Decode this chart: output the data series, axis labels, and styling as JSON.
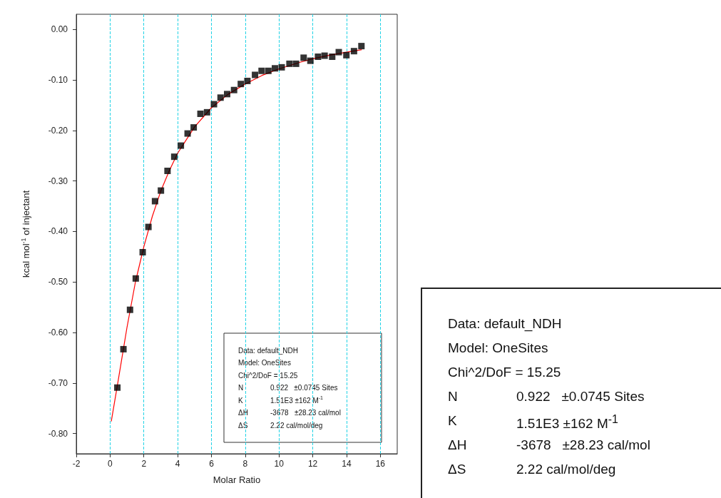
{
  "chart_data": [
    {
      "type": "scatter",
      "xlabel": "Molar Ratio",
      "ylabel": "kcal mol$^{-1}$ of injectant",
      "xlim": [
        -2,
        17
      ],
      "xticks": [
        -2,
        0,
        2,
        4,
        6,
        8,
        10,
        12,
        14,
        16
      ],
      "ylim": [
        -0.84,
        0.03
      ],
      "yticks": [
        {
          "value": 0,
          "label": "0.00"
        },
        {
          "value": -0.1,
          "label": "-0.10"
        },
        {
          "value": -0.2,
          "label": "-0.20"
        },
        {
          "value": -0.3,
          "label": "-0.30"
        },
        {
          "value": -0.4,
          "label": "-0.40"
        },
        {
          "value": -0.5,
          "label": "-0.50"
        },
        {
          "value": -0.6,
          "label": "-0.60"
        },
        {
          "value": -0.7,
          "label": "-0.70"
        },
        {
          "value": -0.8,
          "label": "-0.80"
        }
      ],
      "grid": "x",
      "series": [
        {
          "type": "scatter",
          "color": "#000000",
          "marker": "square",
          "x": [
            0.43,
            0.79,
            1.18,
            1.52,
            1.93,
            2.27,
            2.66,
            3.01,
            3.4,
            3.8,
            4.19,
            4.59,
            4.95,
            5.35,
            5.74,
            6.15,
            6.54,
            6.93,
            7.34,
            7.74,
            8.13,
            8.58,
            8.97,
            9.37,
            9.76,
            10.16,
            10.62,
            11.01,
            11.46,
            11.86,
            12.31,
            12.7,
            13.15,
            13.54,
            13.99,
            14.44,
            14.88
          ],
          "values": [
            -0.709,
            -0.633,
            -0.555,
            -0.493,
            -0.441,
            -0.391,
            -0.34,
            -0.319,
            -0.28,
            -0.252,
            -0.23,
            -0.206,
            -0.194,
            -0.167,
            -0.164,
            -0.148,
            -0.135,
            -0.128,
            -0.12,
            -0.108,
            -0.102,
            -0.09,
            -0.082,
            -0.082,
            -0.077,
            -0.075,
            -0.068,
            -0.068,
            -0.056,
            -0.062,
            -0.054,
            -0.052,
            -0.054,
            -0.045,
            -0.051,
            -0.043,
            -0.033
          ]
        },
        {
          "type": "line",
          "color": "#ff0000",
          "marker": "none",
          "line_style": "solid",
          "x": [
            0.07,
            0.43,
            1,
            1.5,
            2,
            2.5,
            3,
            3.5,
            4,
            5,
            6,
            7,
            8,
            9,
            10,
            11.25,
            12,
            13,
            14,
            14.9
          ],
          "values": [
            -0.776,
            -0.705,
            -0.59,
            -0.5,
            -0.43,
            -0.37,
            -0.32,
            -0.28,
            -0.245,
            -0.193,
            -0.155,
            -0.128,
            -0.108,
            -0.091,
            -0.078,
            -0.065,
            -0.058,
            -0.051,
            -0.045,
            -0.04
          ]
        }
      ],
      "annotations": [
        "Data: default_NDH",
        "Model: OneSites",
        "Chi^2/DoF = 15.25",
        "N\t0.922   ±0.0745 Sites",
        "K\t1.51E3 ±162 M$^{-1}$",
        "ΔH\t-3678   ±28.23 cal/mol",
        "ΔS\t2.22 cal/mol/deg"
      ]
    },
    {
      "type": "other",
      "annotations": [
        "Data: default_NDH",
        "Model: OneSites",
        "Chi^2/DoF = 15.25",
        "N\t0.922   ±0.0745 Sites",
        "K\t1.51E3 ±162 M$^{-1}$",
        "ΔH\t-3678   ±28.23 cal/mol",
        "ΔS\t2.22 cal/mol/deg"
      ]
    }
  ]
}
